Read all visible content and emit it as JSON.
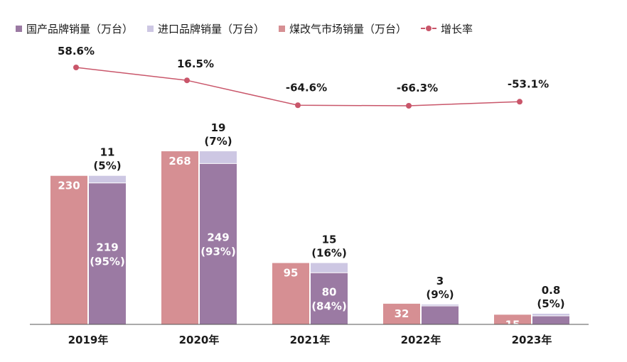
{
  "legend": {
    "domestic": "国产品牌销量（万台）",
    "imported": "进口品牌销量（万台）",
    "coal": "煤改气市场销量（万台）",
    "growth": "增长率"
  },
  "colors": {
    "domestic": "#9b7aa3",
    "imported": "#cdc7e3",
    "coal": "#d68f93",
    "growth": "#c9566a",
    "axis": "#555555"
  },
  "chart_data": {
    "type": "bar",
    "categories": [
      "2019年",
      "2020年",
      "2021年",
      "2022年",
      "2023年"
    ],
    "series": [
      {
        "name": "煤改气市场销量（万台）",
        "key": "coal",
        "values": [
          230,
          268,
          95,
          32,
          15
        ],
        "labels": [
          "230",
          "268",
          "95",
          "32",
          "15"
        ]
      },
      {
        "name": "国产品牌销量（万台）",
        "key": "domestic",
        "values": [
          219,
          249,
          80,
          null,
          null
        ],
        "labels": [
          "219",
          "249",
          "80",
          "",
          ""
        ],
        "share_labels": [
          "(95%)",
          "(93%)",
          "(84%)",
          "",
          ""
        ]
      },
      {
        "name": "进口品牌销量（万台）",
        "key": "imported",
        "values": [
          11,
          19,
          15,
          3,
          0.8
        ],
        "labels": [
          "11",
          "19",
          "15",
          "3",
          "0.8"
        ],
        "share_labels": [
          "(5%)",
          "(7%)",
          "(16%)",
          "(9%)",
          "(5%)"
        ]
      },
      {
        "name": "增长率",
        "key": "growth",
        "type": "line",
        "values": [
          58.6,
          16.5,
          -64.6,
          -66.3,
          -53.1
        ],
        "labels": [
          "58.6%",
          "16.5%",
          "-64.6%",
          "-66.3%",
          "-53.1%"
        ]
      }
    ],
    "stacked_total_series": [
      "国产品牌销量（万台）",
      "进口品牌销量（万台）"
    ],
    "stacked_totals_note_visible": false,
    "grid": false,
    "legend_position": "top"
  }
}
